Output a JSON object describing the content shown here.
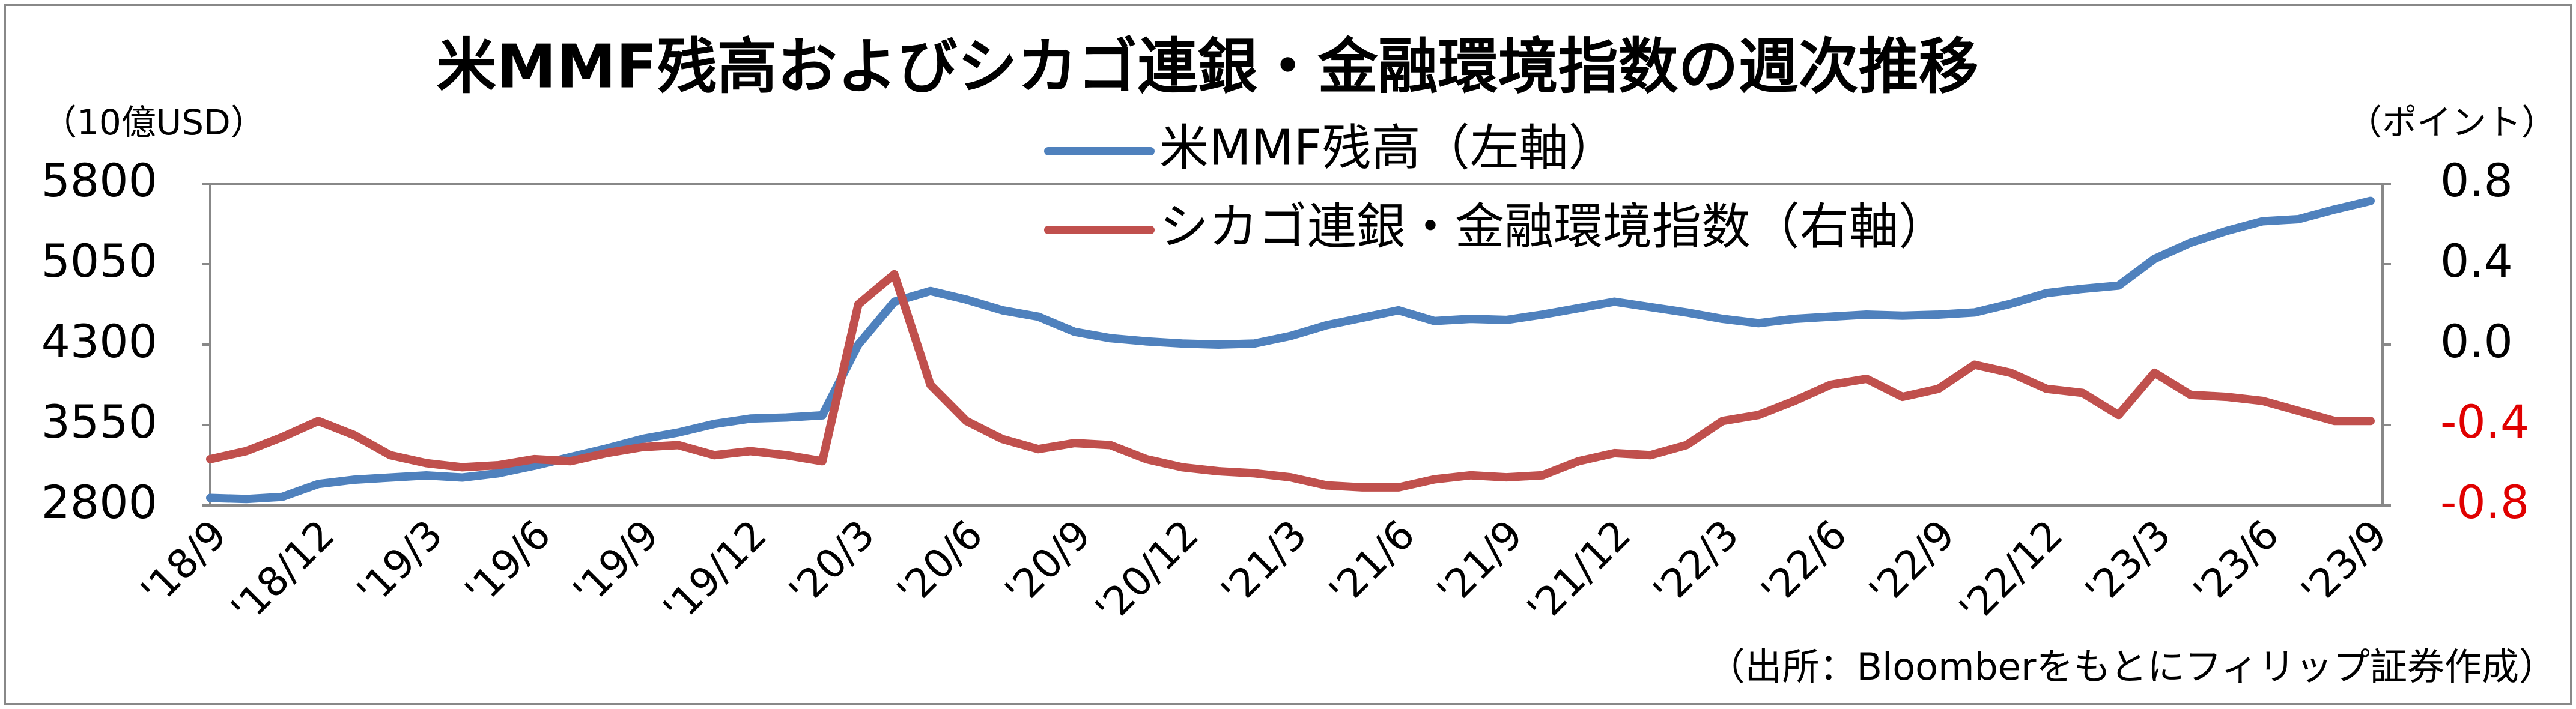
{
  "chart_data": {
    "type": "line",
    "title": "米MMF残高およびシカゴ連銀・金融環境指数の週次推移",
    "y_label": "（10億USD）",
    "y2_label": "（ポイント）",
    "source": "（出所：Bloomberをもとにフィリップ証券作成）",
    "categories": [
      "'18/9",
      null,
      null,
      "'18/12",
      null,
      null,
      "'19/3",
      null,
      null,
      "'19/6",
      null,
      null,
      "'19/9",
      null,
      null,
      "'19/12",
      null,
      null,
      "'20/3",
      null,
      null,
      "'20/6",
      null,
      null,
      "'20/9",
      null,
      null,
      "'20/12",
      null,
      null,
      "'21/3",
      null,
      null,
      "'21/6",
      null,
      null,
      "'21/9",
      null,
      null,
      "'21/12",
      null,
      null,
      "'22/3",
      null,
      null,
      "'22/6",
      null,
      null,
      "'22/9",
      null,
      null,
      "'22/12",
      null,
      null,
      "'23/3",
      null,
      null,
      "'23/6",
      null,
      null,
      "'23/9"
    ],
    "series": [
      {
        "name": "米MMF残高（左軸）",
        "color": "#4f81bd",
        "axis": "y",
        "values": [
          2870,
          2860,
          2880,
          3000,
          3040,
          3060,
          3080,
          3060,
          3100,
          3170,
          3250,
          3330,
          3420,
          3480,
          3560,
          3610,
          3620,
          3640,
          4300,
          4700,
          4800,
          4720,
          4620,
          4560,
          4420,
          4360,
          4330,
          4310,
          4300,
          4310,
          4380,
          4480,
          4550,
          4620,
          4520,
          4540,
          4530,
          4580,
          4640,
          4700,
          4650,
          4600,
          4540,
          4500,
          4540,
          4560,
          4580,
          4570,
          4580,
          4600,
          4680,
          4780,
          4820,
          4850,
          5100,
          5250,
          5360,
          5450,
          5470,
          5560,
          5640
        ]
      },
      {
        "name": "シカゴ連銀・金融環境指数（右軸）",
        "color": "#c0504d",
        "axis": "y2",
        "values": [
          -0.57,
          -0.53,
          -0.46,
          -0.38,
          -0.45,
          -0.55,
          -0.59,
          -0.61,
          -0.6,
          -0.57,
          -0.58,
          -0.54,
          -0.51,
          -0.5,
          -0.55,
          -0.53,
          -0.55,
          -0.58,
          0.2,
          0.35,
          -0.2,
          -0.38,
          -0.47,
          -0.52,
          -0.49,
          -0.5,
          -0.57,
          -0.61,
          -0.63,
          -0.64,
          -0.66,
          -0.7,
          -0.71,
          -0.71,
          -0.67,
          -0.65,
          -0.66,
          -0.65,
          -0.58,
          -0.54,
          -0.55,
          -0.5,
          -0.38,
          -0.35,
          -0.28,
          -0.2,
          -0.17,
          -0.26,
          -0.22,
          -0.1,
          -0.14,
          -0.22,
          -0.24,
          -0.35,
          -0.14,
          -0.25,
          -0.26,
          -0.28,
          -0.33,
          -0.38,
          -0.38
        ]
      }
    ],
    "ylim": [
      2800,
      5800
    ],
    "yticks": [
      2800,
      3550,
      4300,
      5050,
      5800
    ],
    "y2lim": [
      -0.8,
      0.8
    ],
    "y2ticks": [
      -0.8,
      -0.4,
      {
        "value": 0,
        "label": "0.0"
      },
      0.4,
      0.8
    ],
    "grid": false
  }
}
